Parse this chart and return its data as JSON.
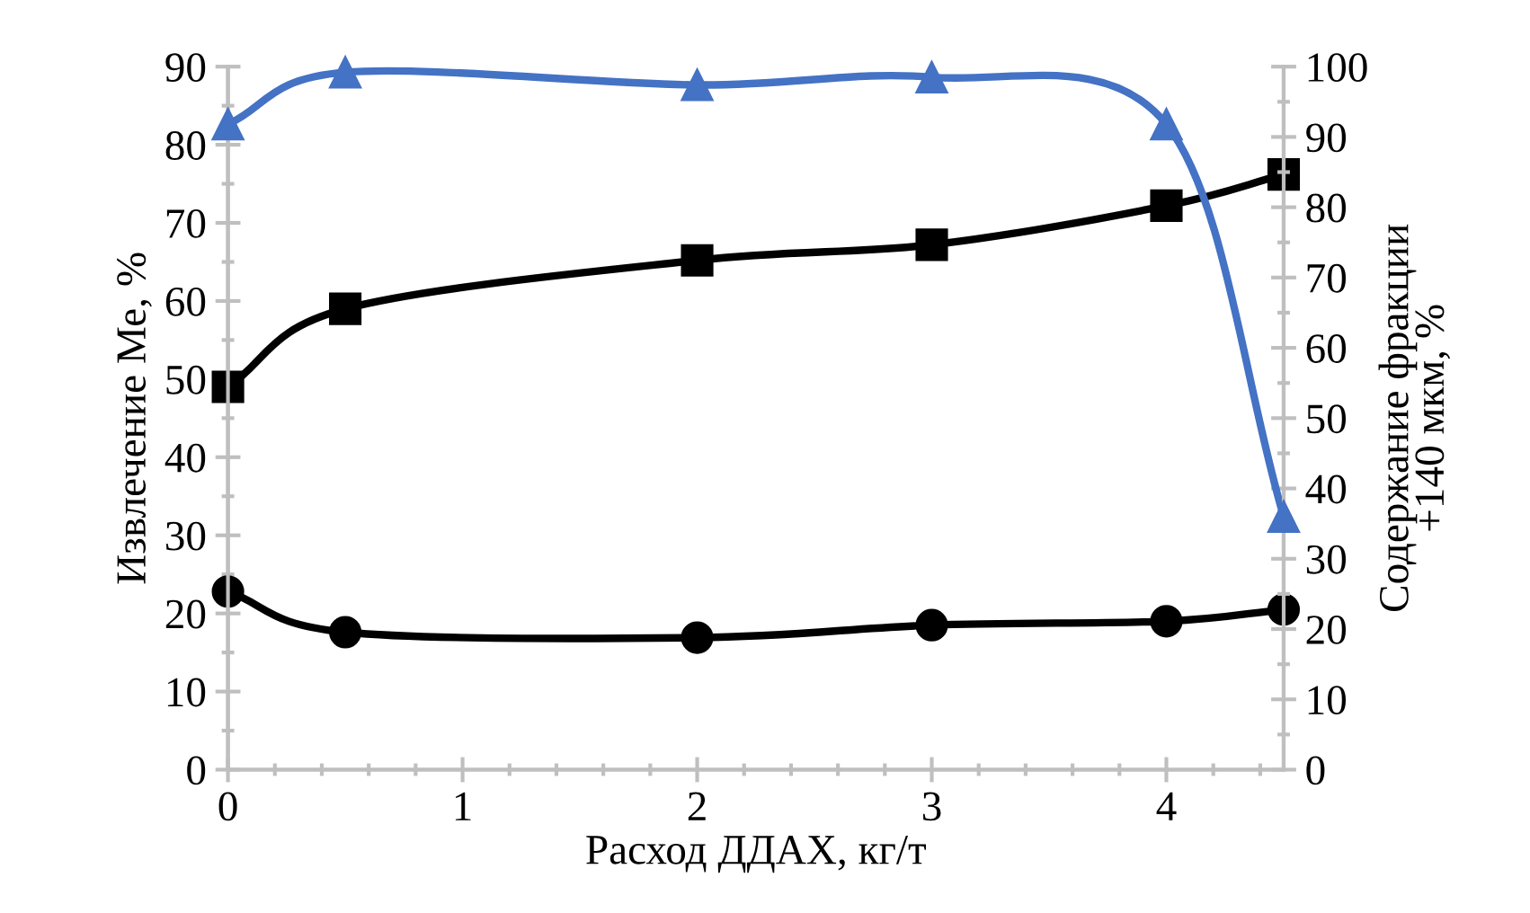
{
  "chart_data": {
    "type": "line",
    "xlabel": "Расход ДДАХ, кг/т",
    "ylabel": "Извлечение Ме, %",
    "y2label": "Содержание фракции\n+140 мкм, %",
    "x": [
      0,
      0.5,
      2,
      3,
      4,
      4.5
    ],
    "xlim": [
      0,
      4.5
    ],
    "xticks": [
      0,
      1,
      2,
      3,
      4
    ],
    "ylim": [
      0,
      90
    ],
    "yticks": [
      0,
      10,
      20,
      30,
      40,
      50,
      60,
      70,
      80,
      90
    ],
    "y2lim": [
      0,
      100
    ],
    "y2ticks": [
      0,
      10,
      20,
      30,
      40,
      50,
      60,
      70,
      80,
      90,
      100
    ],
    "grid": false,
    "legend": false,
    "series": [
      {
        "color": "#4472c4",
        "marker": "triangle",
        "axis": "y2",
        "values": [
          91.8,
          99.2,
          97.4,
          98.5,
          91.8,
          36
        ]
      },
      {
        "color": "#000000",
        "marker": "square",
        "values": [
          49,
          59,
          65.2,
          67.2,
          72.2,
          76.2
        ]
      },
      {
        "color": "#000000",
        "marker": "circle",
        "values": [
          22.8,
          17.6,
          16.9,
          18.5,
          19.0,
          20.5
        ]
      }
    ]
  }
}
